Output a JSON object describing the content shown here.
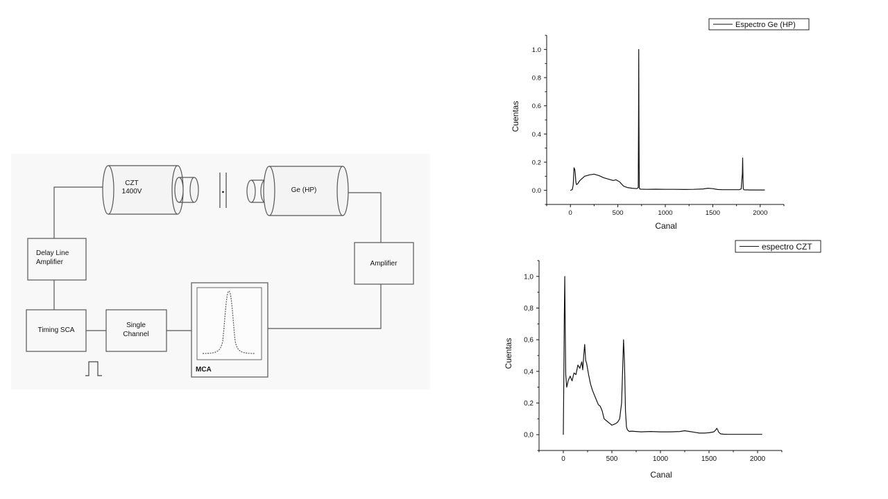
{
  "diagram": {
    "czt_detector": {
      "name": "CZT",
      "voltage": "1400V"
    },
    "ge_detector": {
      "name": "Ge (HP)"
    },
    "delay_line_amplifier": [
      "Delay Line",
      "Amplifier"
    ],
    "amplifier": "Amplifier",
    "timing_sca": "Timing SCA",
    "single_channel": [
      "Single",
      "Channel"
    ],
    "mca": "MCA"
  },
  "chart_data": [
    {
      "type": "line",
      "title": "",
      "xlabel": "Canal",
      "ylabel": "Cuentas",
      "xlim": [
        -250,
        2250
      ],
      "ylim": [
        -0.1,
        1.1
      ],
      "xticks": [
        "0",
        "500",
        "1000",
        "1500",
        "2000"
      ],
      "yticks": [
        "0.0",
        "0.2",
        "0.4",
        "0.6",
        "0.8",
        "1.0"
      ],
      "ytick_values": [
        0,
        0.2,
        0.4,
        0.6,
        0.8,
        1.0
      ],
      "legend": {
        "position": "top-right"
      },
      "series": [
        {
          "name": "Espectro Ge (HP)",
          "x": [
            0,
            20,
            30,
            38,
            45,
            50,
            58,
            65,
            80,
            100,
            150,
            200,
            250,
            300,
            350,
            400,
            450,
            480,
            520,
            560,
            600,
            650,
            700,
            715,
            718,
            720,
            722,
            726,
            730,
            745,
            800,
            900,
            1000,
            1100,
            1200,
            1300,
            1400,
            1450,
            1500,
            1550,
            1600,
            1700,
            1780,
            1800,
            1812,
            1815,
            1818,
            1822,
            1830,
            1900,
            2000,
            2048
          ],
          "y": [
            0.0,
            0.005,
            0.04,
            0.16,
            0.15,
            0.13,
            0.06,
            0.04,
            0.05,
            0.07,
            0.1,
            0.11,
            0.115,
            0.105,
            0.09,
            0.08,
            0.07,
            0.075,
            0.06,
            0.03,
            0.02,
            0.015,
            0.012,
            0.02,
            0.5,
            1.0,
            0.5,
            0.02,
            0.01,
            0.008,
            0.007,
            0.008,
            0.007,
            0.007,
            0.006,
            0.007,
            0.01,
            0.015,
            0.012,
            0.006,
            0.005,
            0.005,
            0.005,
            0.01,
            0.12,
            0.23,
            0.12,
            0.01,
            0.004,
            0.003,
            0.003,
            0.003
          ]
        }
      ]
    },
    {
      "type": "line",
      "title": "",
      "xlabel": "Canal",
      "ylabel": "Cuentas",
      "xlim": [
        -250,
        2250
      ],
      "ylim": [
        -0.1,
        1.1
      ],
      "xticks": [
        "0",
        "500",
        "1000",
        "1500",
        "2000"
      ],
      "yticks": [
        "0,0",
        "0,2",
        "0,4",
        "0,6",
        "0,8",
        "1,0"
      ],
      "ytick_values": [
        0,
        0.2,
        0.4,
        0.6,
        0.8,
        1.0
      ],
      "legend": {
        "position": "top-right"
      },
      "series": [
        {
          "name": "espectro CZT",
          "x": [
            0,
            5,
            10,
            15,
            20,
            25,
            35,
            50,
            70,
            90,
            110,
            130,
            150,
            170,
            190,
            200,
            210,
            220,
            230,
            240,
            260,
            280,
            300,
            320,
            340,
            360,
            380,
            400,
            420,
            440,
            460,
            480,
            500,
            520,
            540,
            560,
            580,
            600,
            610,
            620,
            630,
            640,
            650,
            660,
            680,
            700,
            750,
            800,
            900,
            1000,
            1100,
            1200,
            1250,
            1300,
            1350,
            1400,
            1450,
            1500,
            1550,
            1570,
            1580,
            1590,
            1600,
            1620,
            1650,
            1700,
            1800,
            1900,
            2000,
            2048
          ],
          "y": [
            0.0,
            0.35,
            0.75,
            1.0,
            0.65,
            0.38,
            0.3,
            0.34,
            0.37,
            0.34,
            0.39,
            0.38,
            0.44,
            0.42,
            0.46,
            0.41,
            0.5,
            0.57,
            0.47,
            0.45,
            0.38,
            0.32,
            0.28,
            0.25,
            0.22,
            0.19,
            0.18,
            0.15,
            0.1,
            0.09,
            0.08,
            0.07,
            0.06,
            0.065,
            0.07,
            0.08,
            0.1,
            0.2,
            0.4,
            0.6,
            0.45,
            0.15,
            0.05,
            0.03,
            0.02,
            0.022,
            0.02,
            0.018,
            0.02,
            0.018,
            0.018,
            0.02,
            0.025,
            0.02,
            0.015,
            0.01,
            0.01,
            0.012,
            0.018,
            0.03,
            0.04,
            0.03,
            0.015,
            0.005,
            0.003,
            0.002,
            0.002,
            0.002,
            0.002,
            0.002
          ]
        }
      ]
    }
  ]
}
